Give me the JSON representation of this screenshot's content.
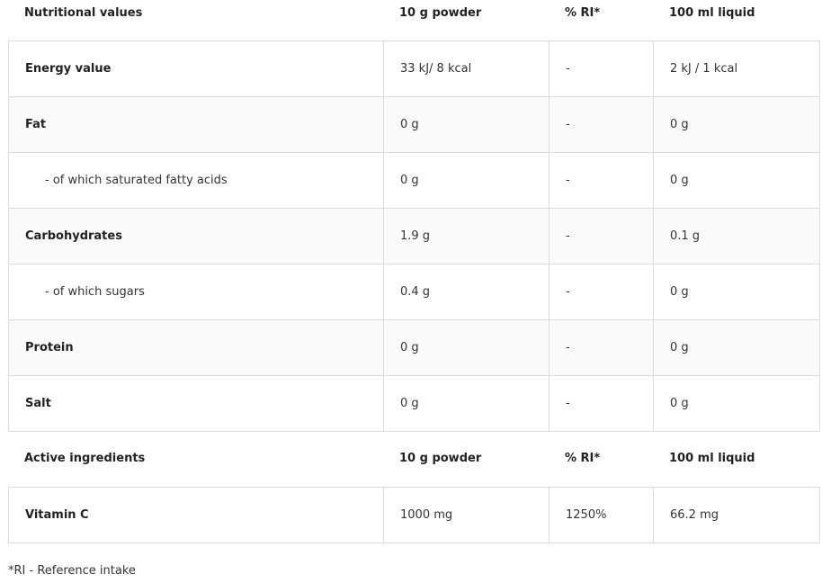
{
  "nutrition": {
    "headers": [
      "Nutritional values",
      "10 g powder",
      "% RI*",
      "100 ml liquid"
    ],
    "rows": [
      {
        "name": "Energy value",
        "sub": false,
        "powder": "33 kJ/ 8 kcal",
        "ri": "-",
        "liquid": "2 kJ / 1 kcal"
      },
      {
        "name": "Fat",
        "sub": false,
        "powder": "0 g",
        "ri": "-",
        "liquid": "0 g"
      },
      {
        "name": "- of which saturated fatty acids",
        "sub": true,
        "powder": "0 g",
        "ri": "-",
        "liquid": "0 g"
      },
      {
        "name": "Carbohydrates",
        "sub": false,
        "powder": "1.9 g",
        "ri": "-",
        "liquid": "0.1 g"
      },
      {
        "name": "- of which sugars",
        "sub": true,
        "powder": "0.4 g",
        "ri": "-",
        "liquid": "0 g"
      },
      {
        "name": "Protein",
        "sub": false,
        "powder": "0 g",
        "ri": "-",
        "liquid": "0 g"
      },
      {
        "name": "Salt",
        "sub": false,
        "powder": "0 g",
        "ri": "-",
        "liquid": "0 g"
      }
    ]
  },
  "active": {
    "headers": [
      "Active ingredients",
      "10 g powder",
      "% RI*",
      "100 ml liquid"
    ],
    "rows": [
      {
        "name": "Vitamin C",
        "sub": false,
        "powder": "1000 mg",
        "ri": "1250%",
        "liquid": "66.2 mg"
      }
    ]
  },
  "footnote": "*RI - Reference intake"
}
